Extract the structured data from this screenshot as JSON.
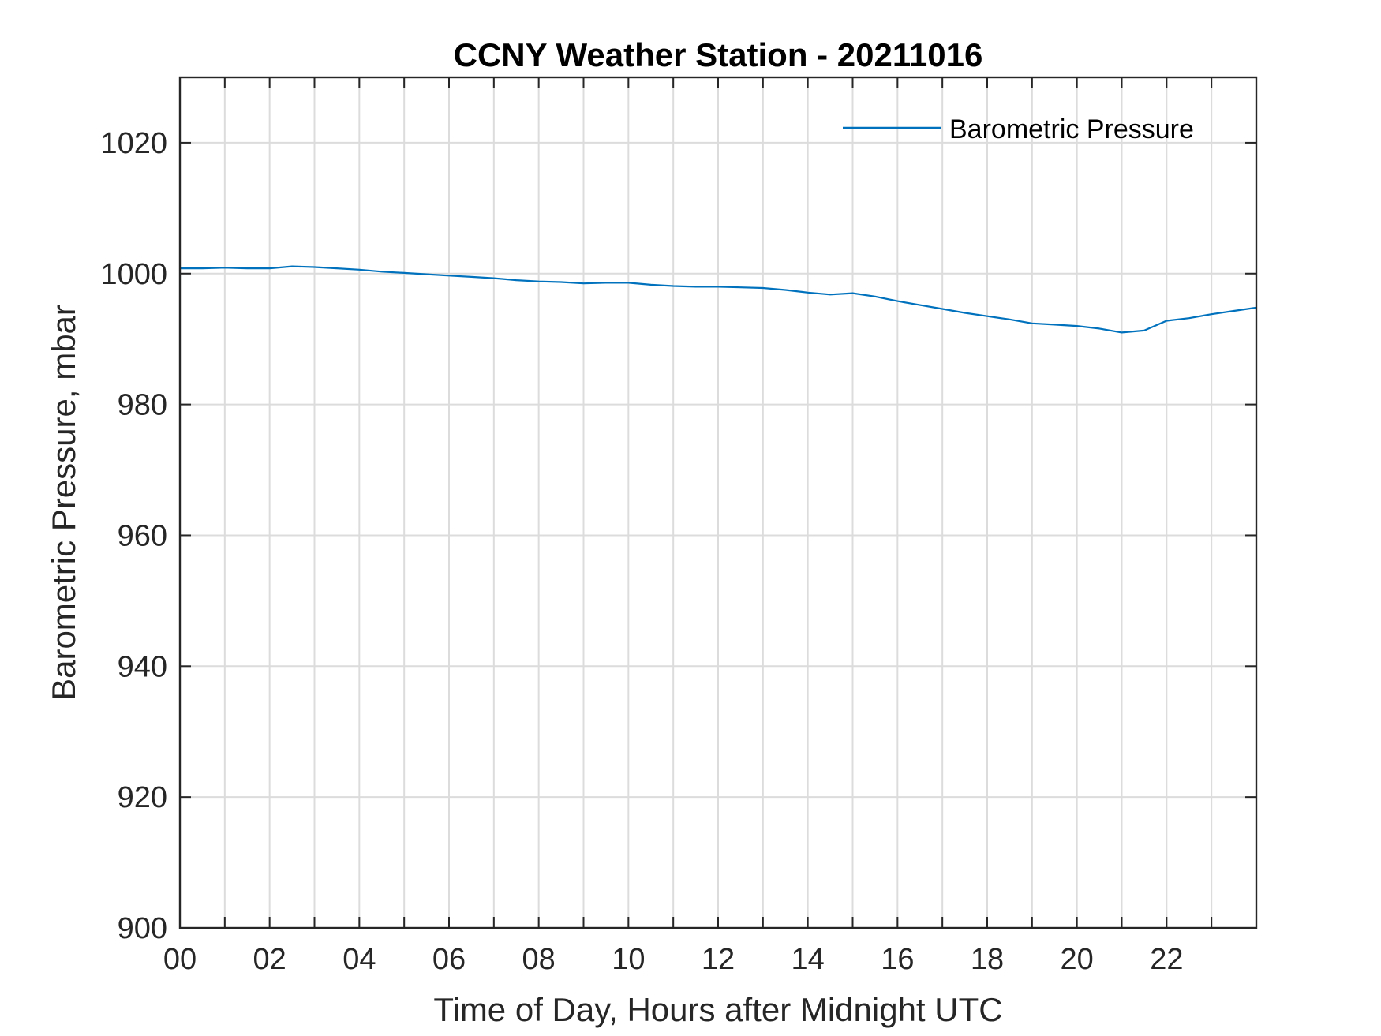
{
  "chart_data": {
    "type": "line",
    "title": "CCNY Weather Station - 20211016",
    "xlabel": "Time of Day, Hours after Midnight UTC",
    "ylabel": "Barometric Pressure, mbar",
    "xlim": [
      0,
      24
    ],
    "ylim": [
      900,
      1030
    ],
    "xticks": [
      0,
      2,
      4,
      6,
      8,
      10,
      12,
      14,
      16,
      18,
      20,
      22
    ],
    "xtick_labels": [
      "00",
      "02",
      "04",
      "06",
      "08",
      "10",
      "12",
      "14",
      "16",
      "18",
      "20",
      "22"
    ],
    "xgrid_step": 1,
    "yticks": [
      900,
      920,
      940,
      960,
      980,
      1000,
      1020
    ],
    "ytick_labels": [
      "900",
      "920",
      "940",
      "960",
      "980",
      "1000",
      "1020"
    ],
    "ygrid": [
      900,
      920,
      940,
      960,
      980,
      1000,
      1020
    ],
    "grid": true,
    "legend_position": "top-right",
    "series": [
      {
        "name": "Barometric Pressure",
        "color": "#0072bd",
        "x": [
          0,
          0.5,
          1,
          1.5,
          2,
          2.5,
          3,
          3.5,
          4,
          4.5,
          5,
          5.5,
          6,
          6.5,
          7,
          7.5,
          8,
          8.5,
          9,
          9.5,
          10,
          10.5,
          11,
          11.5,
          12,
          12.5,
          13,
          13.5,
          14,
          14.5,
          15,
          15.5,
          16,
          16.5,
          17,
          17.5,
          18,
          18.5,
          19,
          19.5,
          20,
          20.5,
          21,
          21.5,
          22,
          22.5,
          23,
          23.5,
          24
        ],
        "values": [
          1000.8,
          1000.8,
          1000.9,
          1000.8,
          1000.8,
          1001.1,
          1001.0,
          1000.8,
          1000.6,
          1000.3,
          1000.1,
          999.9,
          999.7,
          999.5,
          999.3,
          999.0,
          998.8,
          998.7,
          998.5,
          998.6,
          998.6,
          998.3,
          998.1,
          998.0,
          998.0,
          997.9,
          997.8,
          997.5,
          997.1,
          996.8,
          997.0,
          996.5,
          995.8,
          995.2,
          994.6,
          994.0,
          993.5,
          993.0,
          992.4,
          992.2,
          992.0,
          991.6,
          991.0,
          991.3,
          992.8,
          993.2,
          993.8,
          994.3,
          994.8
        ]
      }
    ]
  }
}
